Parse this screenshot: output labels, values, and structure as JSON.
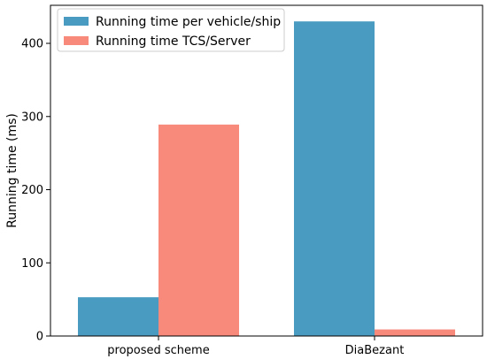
{
  "chart_data": {
    "type": "bar",
    "categories": [
      "proposed scheme",
      "DiaBezant"
    ],
    "series": [
      {
        "name": "Running time per vehicle/ship",
        "values": [
          53,
          430
        ],
        "color": "#4a9bc1"
      },
      {
        "name": "Running time TCS/Server",
        "values": [
          289,
          9
        ],
        "color": "#f88a7b"
      }
    ],
    "ylabel": "Running time (ms)",
    "xlabel": "",
    "ylim": [
      0,
      452
    ],
    "yticks": [
      0,
      100,
      200,
      300,
      400
    ],
    "grid": false,
    "legend_position": "top-left"
  }
}
